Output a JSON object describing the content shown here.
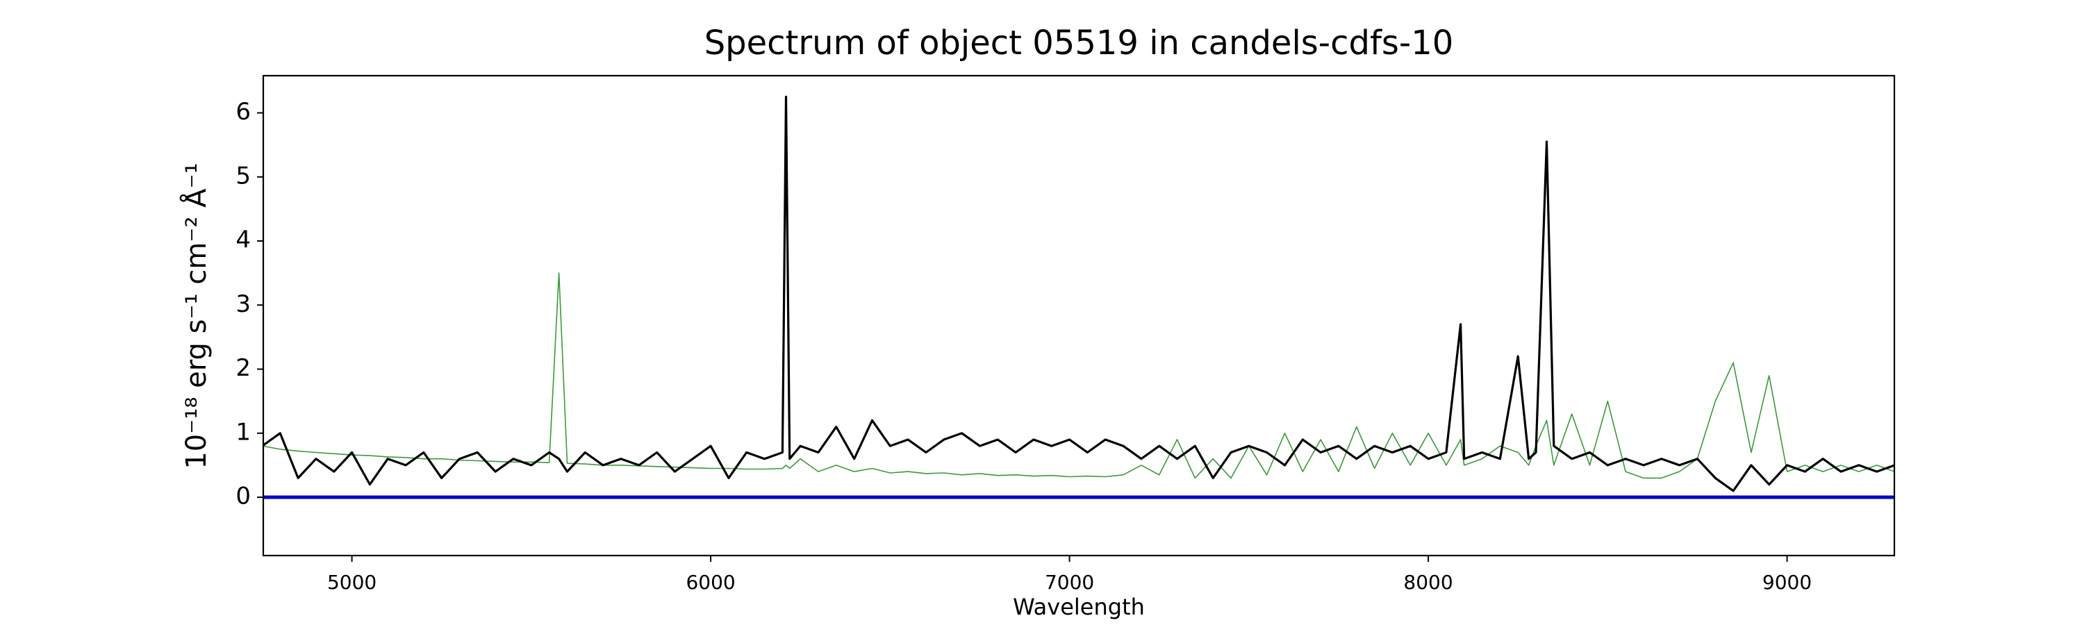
{
  "chart_data": {
    "type": "line",
    "title": "Spectrum of object 05519 in candels-cdfs-10",
    "xlabel": "Wavelength",
    "ylabel": "10⁻¹⁸ erg s⁻¹ cm⁻² Å⁻¹",
    "xlim": [
      4753,
      9299
    ],
    "ylim": [
      -0.91,
      6.58
    ],
    "xticks": [
      5000,
      6000,
      7000,
      8000,
      9000
    ],
    "yticks": [
      0,
      1,
      2,
      3,
      4,
      5,
      6
    ],
    "hlines": [
      {
        "value": 0,
        "color": "#0000cc"
      }
    ],
    "x": [
      4750,
      4800,
      4850,
      4900,
      4950,
      5000,
      5050,
      5100,
      5150,
      5200,
      5250,
      5300,
      5350,
      5400,
      5450,
      5500,
      5550,
      5577,
      5600,
      5650,
      5700,
      5750,
      5800,
      5850,
      5900,
      5950,
      6000,
      6050,
      6100,
      6150,
      6200,
      6210,
      6220,
      6250,
      6300,
      6350,
      6400,
      6450,
      6500,
      6550,
      6600,
      6650,
      6700,
      6750,
      6800,
      6850,
      6900,
      6950,
      7000,
      7050,
      7100,
      7150,
      7200,
      7250,
      7300,
      7350,
      7400,
      7450,
      7500,
      7550,
      7600,
      7650,
      7700,
      7750,
      7800,
      7850,
      7900,
      7950,
      8000,
      8050,
      8090,
      8100,
      8150,
      8200,
      8250,
      8280,
      8300,
      8330,
      8350,
      8400,
      8450,
      8500,
      8550,
      8600,
      8650,
      8700,
      8750,
      8800,
      8850,
      8900,
      8950,
      9000,
      9050,
      9100,
      9150,
      9200,
      9250,
      9300
    ],
    "series": [
      {
        "color": "#3a9a3a",
        "values": [
          0.8,
          0.75,
          0.72,
          0.7,
          0.68,
          0.66,
          0.65,
          0.63,
          0.62,
          0.6,
          0.6,
          0.58,
          0.57,
          0.56,
          0.55,
          0.55,
          0.54,
          3.5,
          0.53,
          0.52,
          0.5,
          0.5,
          0.49,
          0.48,
          0.47,
          0.46,
          0.45,
          0.45,
          0.44,
          0.44,
          0.45,
          0.5,
          0.45,
          0.6,
          0.4,
          0.5,
          0.4,
          0.45,
          0.38,
          0.4,
          0.37,
          0.38,
          0.35,
          0.37,
          0.34,
          0.35,
          0.33,
          0.34,
          0.32,
          0.33,
          0.32,
          0.35,
          0.5,
          0.35,
          0.9,
          0.3,
          0.6,
          0.3,
          0.8,
          0.35,
          1.0,
          0.4,
          0.9,
          0.4,
          1.1,
          0.45,
          1.0,
          0.5,
          1.0,
          0.5,
          0.9,
          0.5,
          0.6,
          0.8,
          0.7,
          0.5,
          0.8,
          1.2,
          0.5,
          1.3,
          0.5,
          1.5,
          0.4,
          0.3,
          0.3,
          0.4,
          0.6,
          1.5,
          2.1,
          0.7,
          1.9,
          0.4,
          0.5,
          0.4,
          0.5,
          0.4,
          0.5,
          0.4
        ]
      },
      {
        "color": "#000000",
        "values": [
          0.8,
          1.0,
          0.3,
          0.6,
          0.4,
          0.7,
          0.2,
          0.6,
          0.5,
          0.7,
          0.3,
          0.6,
          0.7,
          0.4,
          0.6,
          0.5,
          0.7,
          0.6,
          0.4,
          0.7,
          0.5,
          0.6,
          0.5,
          0.7,
          0.4,
          0.6,
          0.8,
          0.3,
          0.7,
          0.6,
          0.7,
          6.25,
          0.6,
          0.8,
          0.7,
          1.1,
          0.6,
          1.2,
          0.8,
          0.9,
          0.7,
          0.9,
          1.0,
          0.8,
          0.9,
          0.7,
          0.9,
          0.8,
          0.9,
          0.7,
          0.9,
          0.8,
          0.6,
          0.8,
          0.6,
          0.8,
          0.3,
          0.7,
          0.8,
          0.7,
          0.5,
          0.9,
          0.7,
          0.8,
          0.6,
          0.8,
          0.7,
          0.8,
          0.6,
          0.7,
          2.7,
          0.6,
          0.7,
          0.6,
          2.2,
          0.6,
          0.7,
          5.55,
          0.8,
          0.6,
          0.7,
          0.5,
          0.6,
          0.5,
          0.6,
          0.5,
          0.6,
          0.3,
          0.1,
          0.5,
          0.2,
          0.5,
          0.4,
          0.6,
          0.4,
          0.5,
          0.4,
          0.5
        ]
      }
    ]
  }
}
